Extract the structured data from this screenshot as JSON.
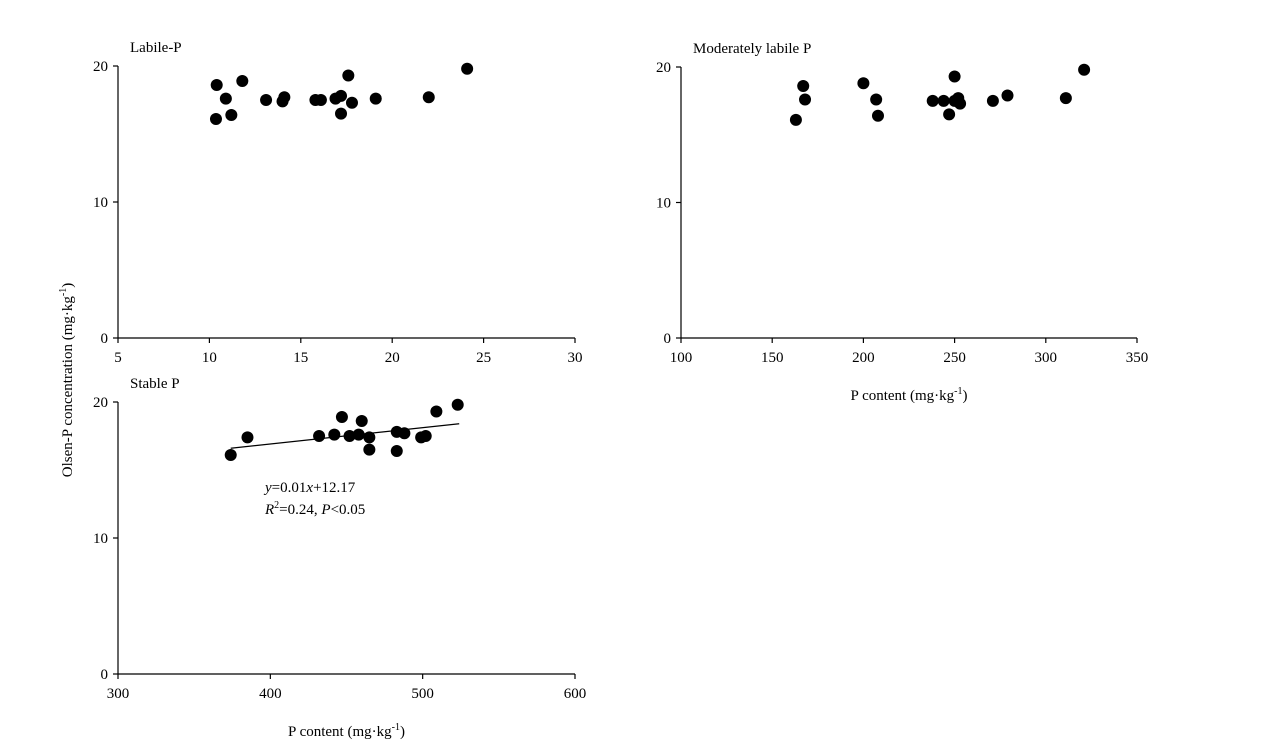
{
  "chart_data": [
    {
      "type": "scatter",
      "title": "Labile-P",
      "x": [
        10.36,
        10.4,
        10.9,
        11.2,
        11.8,
        13.1,
        14.0,
        14.1,
        15.8,
        16.1,
        16.9,
        17.2,
        17.2,
        17.6,
        17.8,
        19.1,
        22.0,
        24.1
      ],
      "y": [
        16.1,
        18.6,
        17.6,
        16.4,
        18.9,
        17.5,
        17.4,
        17.7,
        17.5,
        17.5,
        17.6,
        17.8,
        16.5,
        19.3,
        17.3,
        17.6,
        17.7,
        19.8
      ],
      "xlim": [
        5,
        30
      ],
      "xticks": [
        5,
        10,
        15,
        20,
        25,
        30
      ],
      "ylim": [
        0,
        20
      ],
      "yticks": [
        0,
        10,
        20
      ],
      "color": "#000000",
      "y_label": [
        "Olsen-P concentration (mg·kg",
        "-1",
        ")"
      ]
    },
    {
      "type": "scatter",
      "title": "Moderately labile P",
      "x": [
        163,
        167,
        168,
        200,
        207,
        208,
        238,
        244,
        247,
        250,
        250,
        252,
        253,
        271,
        279,
        311,
        321
      ],
      "y": [
        16.1,
        18.6,
        17.6,
        18.8,
        17.6,
        16.4,
        17.5,
        17.5,
        16.5,
        19.3,
        17.5,
        17.7,
        17.3,
        17.5,
        17.9,
        17.7,
        19.8
      ],
      "xlim": [
        100,
        350
      ],
      "xticks": [
        100,
        150,
        200,
        250,
        300,
        350
      ],
      "ylim": [
        0,
        20
      ],
      "yticks": [
        0,
        10,
        20
      ],
      "color": "#000000",
      "x_label": [
        "P content (mg·kg",
        "-1",
        ")"
      ]
    },
    {
      "type": "scatter",
      "title": "Stable P",
      "x": [
        374,
        385,
        432,
        442,
        447,
        452,
        458,
        460,
        465,
        465,
        483,
        483,
        488,
        499,
        502,
        509,
        523
      ],
      "y": [
        16.1,
        17.4,
        17.5,
        17.6,
        18.9,
        17.5,
        17.6,
        18.6,
        17.4,
        16.5,
        16.4,
        17.8,
        17.7,
        17.4,
        17.5,
        19.3,
        19.8
      ],
      "xlim": [
        300,
        600
      ],
      "xticks": [
        300,
        400,
        500,
        600
      ],
      "ylim": [
        0,
        20
      ],
      "yticks": [
        0,
        10,
        20
      ],
      "color": "#000000",
      "x_label": [
        "P content (mg·kg",
        "-1",
        ")"
      ],
      "trendline": {
        "x": [
          374,
          524
        ],
        "y": [
          16.6,
          18.4
        ]
      },
      "equation": [
        "y",
        "=0.01",
        "x",
        "+12.17"
      ],
      "stats": [
        "R",
        "2",
        "=0.24, ",
        "P",
        "<0.05"
      ]
    }
  ]
}
